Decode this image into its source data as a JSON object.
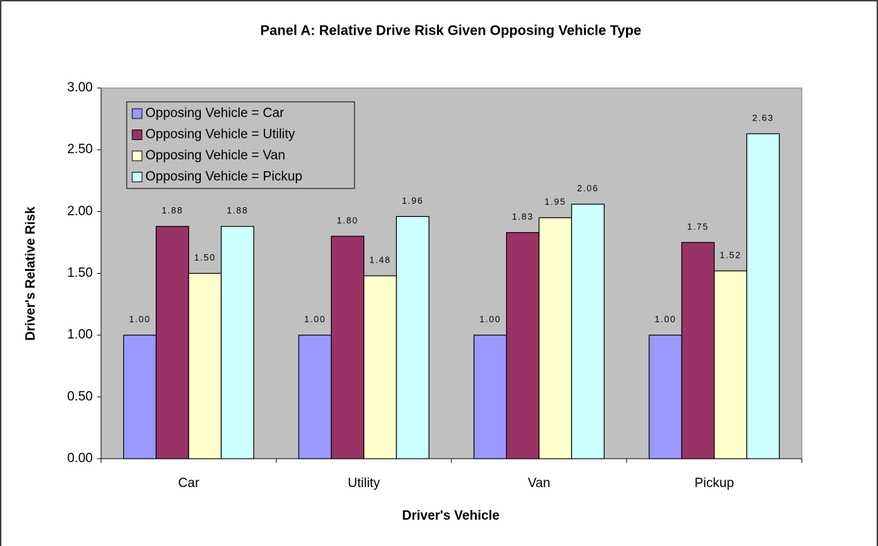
{
  "chart_data": {
    "type": "bar",
    "title": "Panel A: Relative Drive Risk Given Opposing Vehicle Type",
    "x_label": "Driver's Vehicle",
    "y_label": "Driver's Relative Risk",
    "categories": [
      "Car",
      "Utility",
      "Van",
      "Pickup"
    ],
    "series": [
      {
        "name": "Opposing Vehicle = Car",
        "color": "#9999ff",
        "values": [
          1.0,
          1.0,
          1.0,
          1.0
        ],
        "value_labels": [
          "1.00",
          "1.00",
          "1.00",
          "1.00"
        ]
      },
      {
        "name": "Opposing Vehicle = Utility",
        "color": "#993366",
        "values": [
          1.88,
          1.8,
          1.83,
          1.75
        ],
        "value_labels": [
          "1.88",
          "1.80",
          "1.83",
          "1.75"
        ]
      },
      {
        "name": "Opposing Vehicle = Van",
        "color": "#ffffcc",
        "values": [
          1.5,
          1.48,
          1.95,
          1.52
        ],
        "value_labels": [
          "1.50",
          "1.48",
          "1.95",
          "1.52"
        ]
      },
      {
        "name": "Opposing Vehicle = Pickup",
        "color": "#ccffff",
        "values": [
          1.88,
          1.96,
          2.06,
          2.63
        ],
        "value_labels": [
          "1.88",
          "1.96",
          "2.06",
          "2.63"
        ]
      }
    ],
    "ylim": [
      0,
      3
    ],
    "yticks": [
      {
        "value": 0,
        "label": "0.00"
      },
      {
        "value": 0.5,
        "label": "0.50"
      },
      {
        "value": 1,
        "label": "1.00"
      },
      {
        "value": 1.5,
        "label": "1.50"
      },
      {
        "value": 2,
        "label": "2.00"
      },
      {
        "value": 2.5,
        "label": "2.50"
      },
      {
        "value": 3,
        "label": "3.00"
      }
    ],
    "plot_background": "#c0c0c0",
    "legend": "upper left"
  }
}
